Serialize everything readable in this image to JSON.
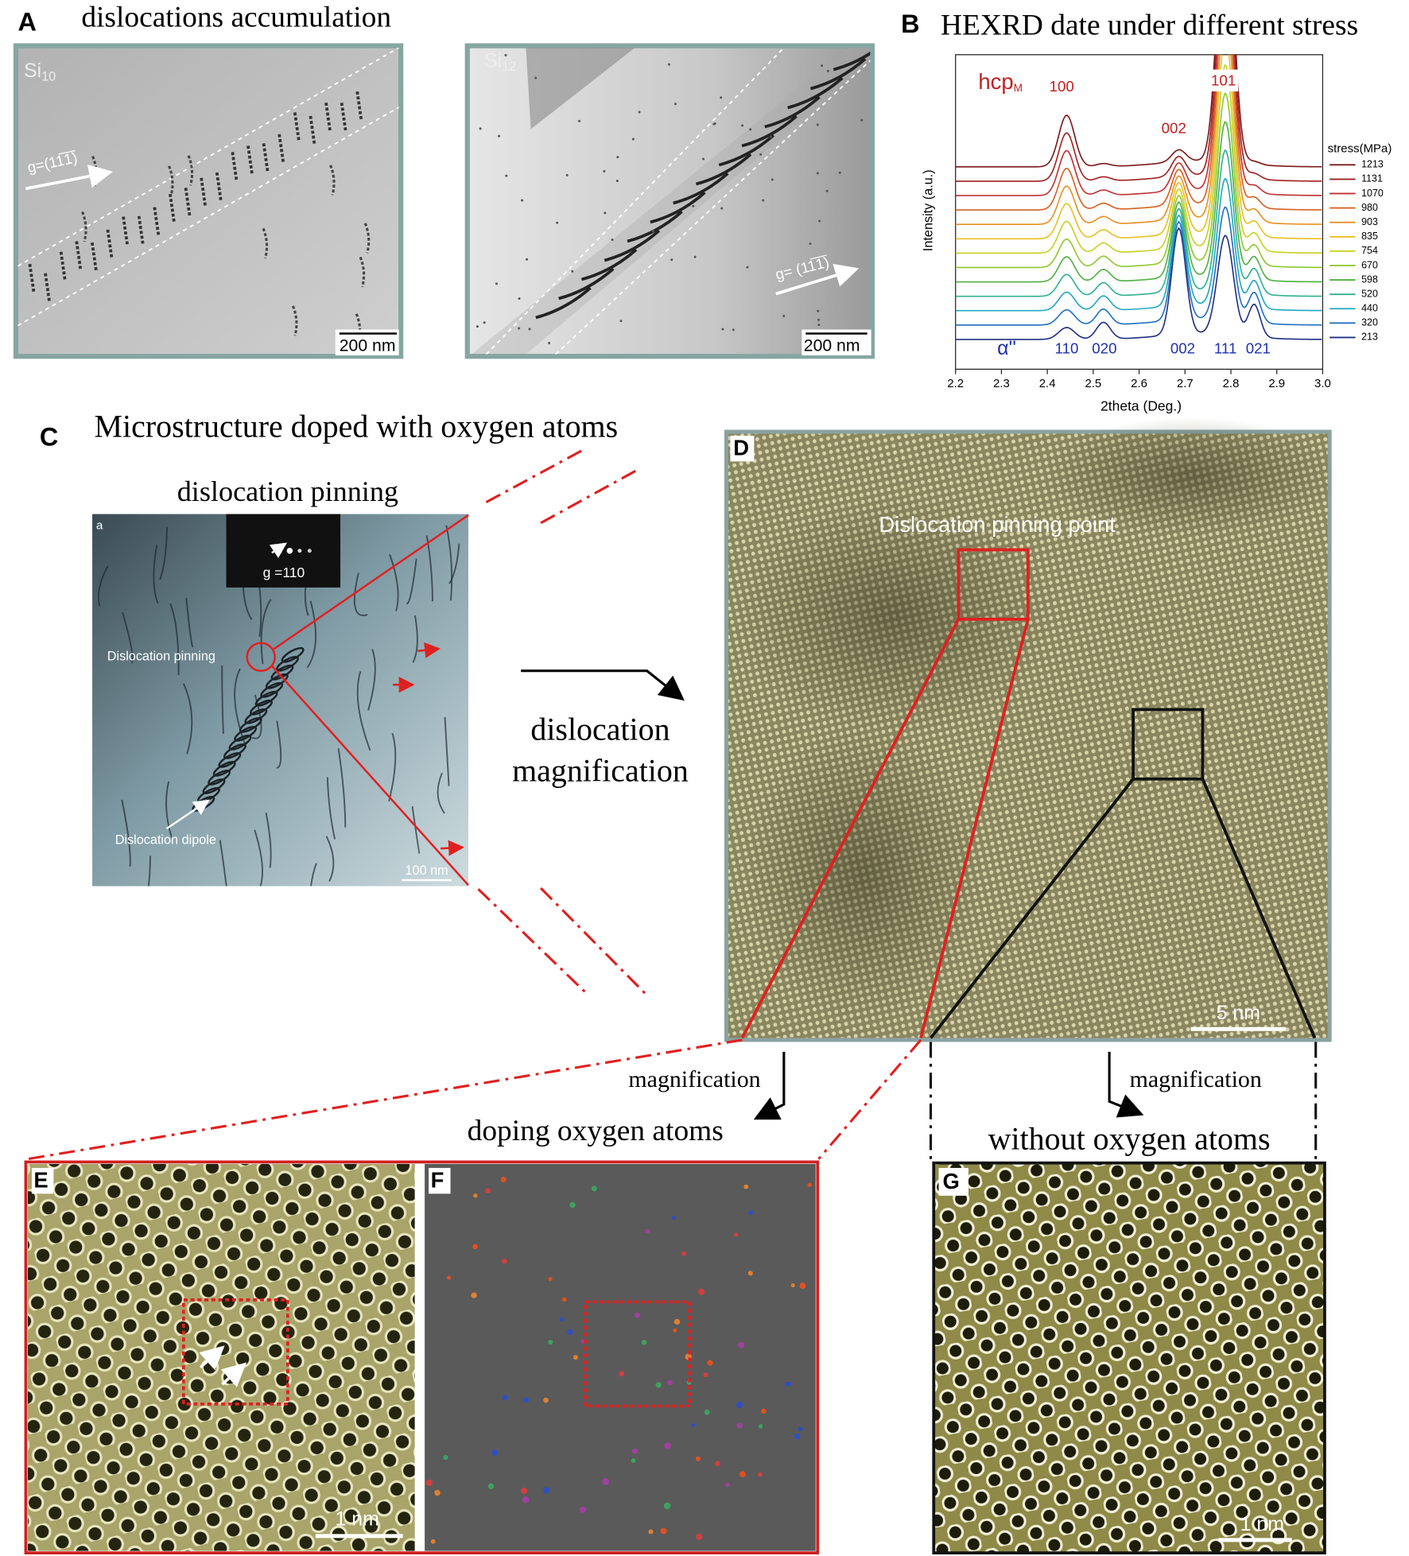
{
  "panel_A": {
    "label": "A",
    "title": "dislocations  accumulation",
    "images": [
      {
        "sample": {
          "element": "Si",
          "subscript": "10"
        },
        "g_vector": "g=(11̅1̅)",
        "scale_bar": "200 nm"
      },
      {
        "sample": {
          "element": "Si",
          "subscript": "12"
        },
        "g_vector": "g= (11̅1̅)",
        "scale_bar": "200 nm"
      }
    ]
  },
  "panel_B": {
    "label": "B",
    "title": "HEXRD date under different stress",
    "phase_hcp": {
      "text": "hcp",
      "subscript": "M"
    },
    "hcp_peaks": [
      "100",
      "002",
      "101"
    ],
    "phase_alpha": "α''",
    "alpha_peaks": [
      "110",
      "020",
      "002",
      "111",
      "021"
    ],
    "y_axis_label": "Intensity (a.u.)",
    "x_axis_label": "2theta (Deg.)",
    "x_ticks": [
      "2.2",
      "2.3",
      "2.4",
      "2.5",
      "2.6",
      "2.7",
      "2.8",
      "2.9",
      "3.0"
    ],
    "legend": {
      "title": "stress(MPa)",
      "entries": [
        {
          "label": "1213",
          "color": "#7a1a1a"
        },
        {
          "label": "1131",
          "color": "#a02020"
        },
        {
          "label": "1070",
          "color": "#c03030"
        },
        {
          "label": "980",
          "color": "#d86020"
        },
        {
          "label": "903",
          "color": "#e89020"
        },
        {
          "label": "835",
          "color": "#e8c020"
        },
        {
          "label": "754",
          "color": "#c8d020"
        },
        {
          "label": "670",
          "color": "#90c830"
        },
        {
          "label": "598",
          "color": "#50b040"
        },
        {
          "label": "520",
          "color": "#30b090"
        },
        {
          "label": "440",
          "color": "#20a8c0"
        },
        {
          "label": "320",
          "color": "#2070c0"
        },
        {
          "label": "213",
          "color": "#203080"
        }
      ]
    }
  },
  "panel_C": {
    "label": "C",
    "title": "Microstructure doped with oxygen atoms",
    "subtitle": "dislocation pinning",
    "inset_label": "a",
    "diffraction_label": "g =110",
    "annotations": [
      "Dislocation pinning",
      "Dislocation dipole"
    ],
    "scale_bar": "100 nm"
  },
  "arrow_label": [
    "dislocation",
    "magnification"
  ],
  "panel_D": {
    "label": "D",
    "annotation": "Dislocation pinning point",
    "scale_bar": "5 nm"
  },
  "transitions": {
    "left": {
      "arrow": "magnification",
      "caption": "doping oxygen atoms"
    },
    "right": {
      "arrow": "magnification",
      "caption": "without oxygen atoms"
    }
  },
  "panel_E": {
    "label": "E",
    "scale_bar": "1 nm"
  },
  "panel_F": {
    "label": "F"
  },
  "panel_G": {
    "label": "G",
    "scale_bar": "1 nm"
  }
}
